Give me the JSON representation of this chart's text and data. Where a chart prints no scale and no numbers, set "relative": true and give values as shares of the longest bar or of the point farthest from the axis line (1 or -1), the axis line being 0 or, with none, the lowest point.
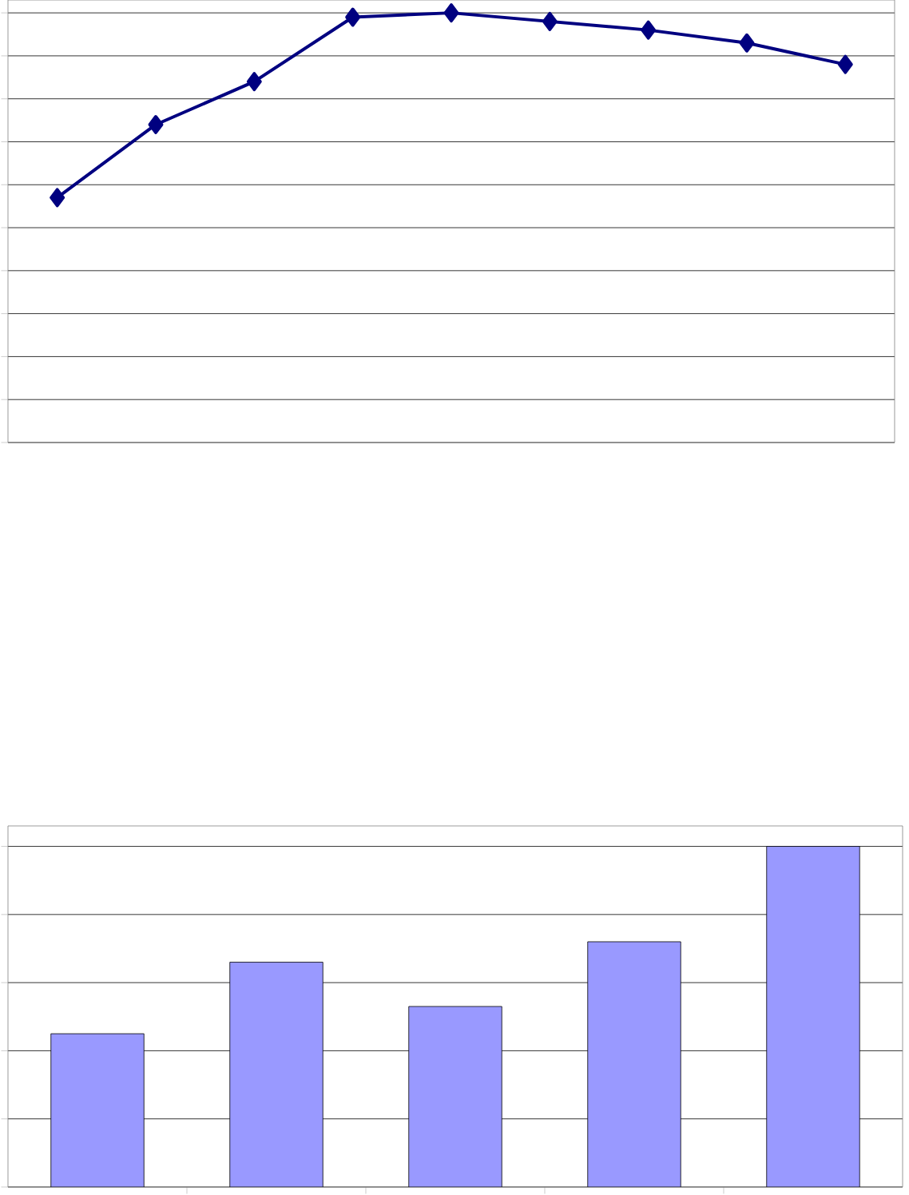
{
  "chart_data": [
    {
      "type": "line",
      "relative": true,
      "categories": [
        null,
        null,
        null,
        null,
        null,
        null,
        null,
        null,
        null
      ],
      "grid": "y",
      "marker": "diamond",
      "line_style": "solid",
      "series": [
        {
          "color": "#000080",
          "values": [
            0.57,
            0.74,
            0.84,
            0.99,
            1,
            0.98,
            0.96,
            0.93,
            0.88
          ]
        }
      ]
    },
    {
      "type": "bar",
      "relative": true,
      "categories": [
        null,
        null,
        null,
        null,
        null
      ],
      "grid": "y",
      "series": [
        {
          "color": "#9999ff",
          "values": [
            0.45,
            0.66,
            0.53,
            0.72,
            1
          ]
        }
      ]
    }
  ]
}
